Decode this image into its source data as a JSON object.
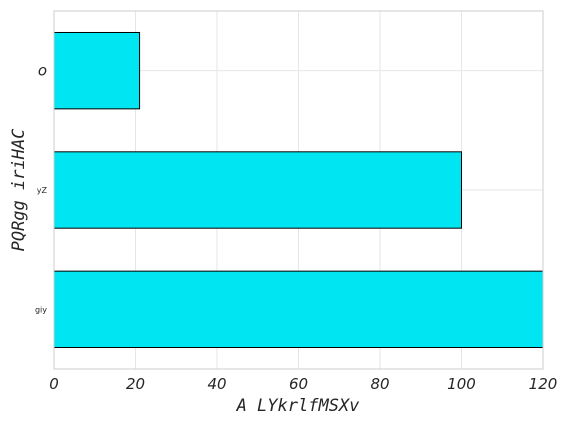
{
  "chart_data": {
    "type": "bar",
    "orientation": "horizontal",
    "categories": [
      "o",
      "yZ",
      "giy"
    ],
    "values": [
      21,
      100,
      120
    ],
    "xlabel": "A LYkrlfMSXv",
    "ylabel": "PQRgg iriHAC",
    "xlim": [
      0,
      120
    ],
    "xticks": [
      "0",
      "20",
      "40",
      "60",
      "80",
      "100",
      "120"
    ],
    "grid": true,
    "colors": {
      "bar": "#00e5f2",
      "edge": "#000000",
      "grid": "#e6e6e6",
      "frame": "#cccccc"
    }
  }
}
